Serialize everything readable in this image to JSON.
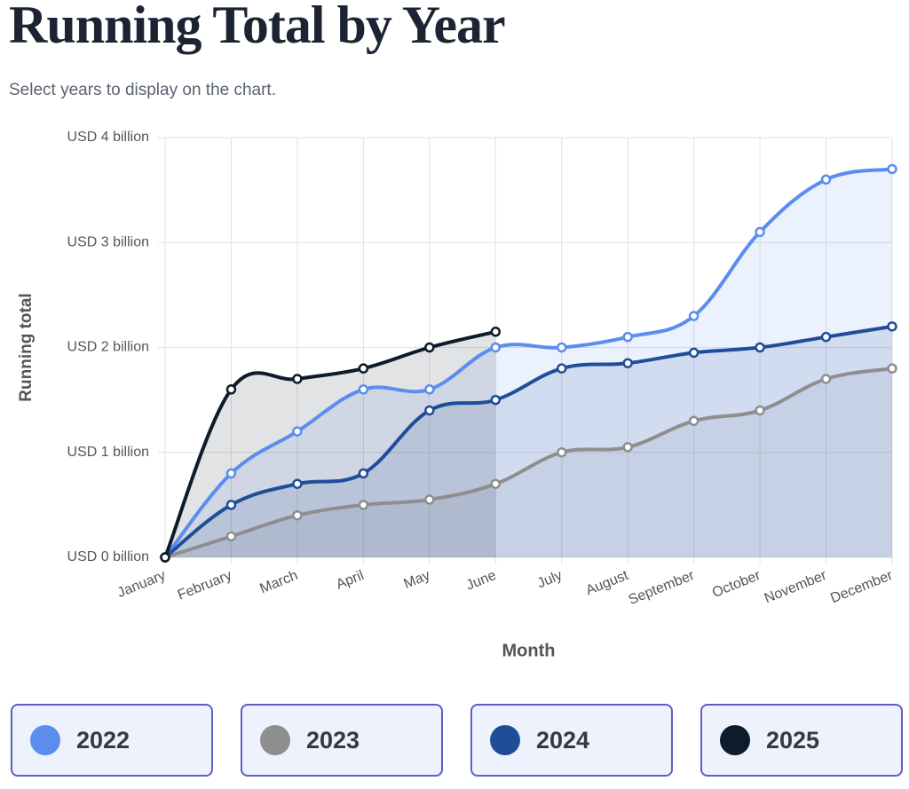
{
  "header": {
    "title": "Running Total by Year",
    "subtitle": "Select years to display on the chart."
  },
  "chart_data": {
    "type": "line",
    "x_label": "Month",
    "y_label": "Running total",
    "categories": [
      "January",
      "February",
      "March",
      "April",
      "May",
      "June",
      "July",
      "August",
      "September",
      "October",
      "November",
      "December"
    ],
    "series": [
      {
        "name": "2022",
        "color": "#5b8def",
        "values": [
          0,
          0.8,
          1.2,
          1.6,
          1.6,
          2.0,
          2.0,
          2.1,
          2.3,
          3.1,
          3.6,
          3.7
        ]
      },
      {
        "name": "2023",
        "color": "#8e8e8e",
        "values": [
          0,
          0.2,
          0.4,
          0.5,
          0.55,
          0.7,
          1.0,
          1.05,
          1.3,
          1.4,
          1.7,
          1.8
        ]
      },
      {
        "name": "2024",
        "color": "#1f4e99",
        "values": [
          0,
          0.5,
          0.7,
          0.8,
          1.4,
          1.5,
          1.8,
          1.85,
          1.95,
          2.0,
          2.1,
          2.2
        ]
      },
      {
        "name": "2025",
        "color": "#0d1b2a",
        "values": [
          0,
          1.6,
          1.7,
          1.8,
          2.0,
          2.15,
          null,
          null,
          null,
          null,
          null,
          null
        ]
      }
    ],
    "ylim": [
      0,
      4
    ],
    "yticks": [
      {
        "value": 0,
        "label": "USD 0 billion"
      },
      {
        "value": 1,
        "label": "USD 1 billion"
      },
      {
        "value": 2,
        "label": "USD 2 billion"
      },
      {
        "value": 3,
        "label": "USD 3 billion"
      },
      {
        "value": 4,
        "label": "USD 4 billion"
      }
    ],
    "grid": true
  }
}
